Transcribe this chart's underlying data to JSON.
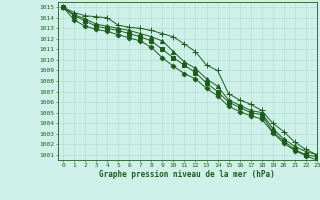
{
  "xlabel": "Graphe pression niveau de la mer (hPa)",
  "ylim": [
    1000.5,
    1015.5
  ],
  "xlim": [
    -0.5,
    23
  ],
  "xticks": [
    0,
    1,
    2,
    3,
    4,
    5,
    6,
    7,
    8,
    9,
    10,
    11,
    12,
    13,
    14,
    15,
    16,
    17,
    18,
    19,
    20,
    21,
    22,
    23
  ],
  "yticks": [
    1001,
    1002,
    1003,
    1004,
    1005,
    1006,
    1007,
    1008,
    1009,
    1010,
    1011,
    1012,
    1013,
    1014,
    1015
  ],
  "background_color": "#cff0e8",
  "grid_color": "#a8ddd0",
  "line_color": "#1e5c1e",
  "tick_color": "#1e5c1e",
  "series": [
    [
      1015.0,
      1014.5,
      1014.2,
      1014.1,
      1014.0,
      1013.3,
      1013.1,
      1013.0,
      1012.8,
      1012.5,
      1012.2,
      1011.5,
      1010.8,
      1009.5,
      1009.0,
      1006.8,
      1006.2,
      1005.8,
      1005.2,
      1004.0,
      1003.2,
      1002.2,
      1001.5,
      1001.0
    ],
    [
      1015.0,
      1014.3,
      1013.9,
      1013.4,
      1013.2,
      1013.0,
      1012.8,
      1012.5,
      1012.2,
      1011.8,
      1010.8,
      1009.8,
      1009.2,
      1008.2,
      1007.5,
      1006.2,
      1005.7,
      1005.2,
      1005.0,
      1003.5,
      1002.5,
      1001.8,
      1001.3,
      1001.0
    ],
    [
      1015.0,
      1014.2,
      1013.7,
      1013.2,
      1013.0,
      1012.8,
      1012.5,
      1012.2,
      1011.8,
      1011.0,
      1010.2,
      1009.5,
      1008.8,
      1007.8,
      1007.0,
      1006.0,
      1005.5,
      1005.0,
      1004.8,
      1003.2,
      1002.3,
      1001.5,
      1001.0,
      1000.8
    ],
    [
      1015.0,
      1013.8,
      1013.2,
      1012.9,
      1012.7,
      1012.4,
      1012.1,
      1011.8,
      1011.2,
      1010.2,
      1009.4,
      1008.7,
      1008.2,
      1007.3,
      1006.6,
      1005.6,
      1005.1,
      1004.7,
      1004.4,
      1003.1,
      1002.1,
      1001.4,
      1000.9,
      1000.5
    ]
  ],
  "markers": [
    "+",
    "^",
    "s",
    "D"
  ],
  "markersizes": [
    4,
    3,
    2.5,
    2.5
  ],
  "linewidths": [
    0.7,
    0.7,
    0.7,
    0.7
  ],
  "tick_fontsize": 4.5,
  "xlabel_fontsize": 5.5
}
